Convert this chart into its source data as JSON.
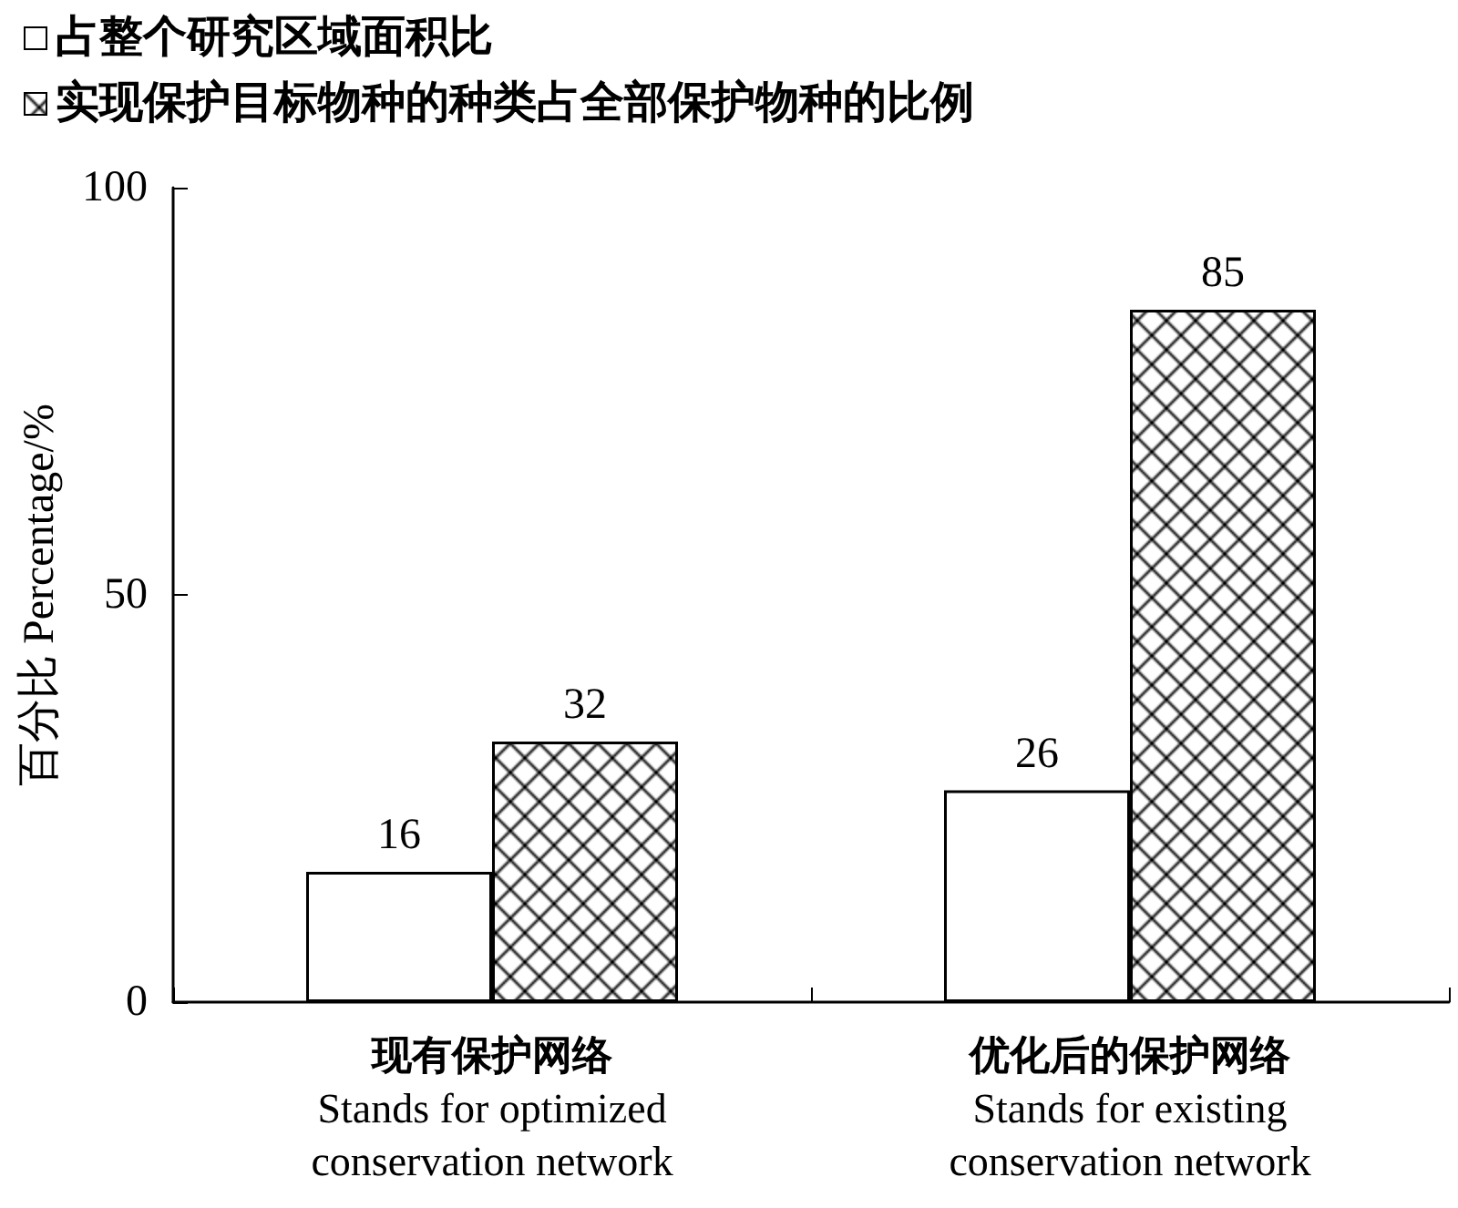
{
  "chart_data": {
    "type": "bar",
    "categories": [
      "现有保护网络\nStands for optimized\nconservation network",
      "优化后的保护网络\nStands for existing\nconservation network"
    ],
    "series": [
      {
        "name": "占整个研究区域面积比",
        "color": "#ffffff",
        "values": [
          16,
          26
        ]
      },
      {
        "name": "实现保护目标物种的种类占全部保护物种的比例",
        "color": "#000000",
        "values": [
          32,
          85
        ]
      }
    ],
    "ylabel": "百分比 Percentage/%",
    "ylim": [
      0,
      100
    ],
    "yticks": [
      0,
      50,
      100
    ],
    "grid": false,
    "legend": "top left",
    "data_labels": true
  }
}
